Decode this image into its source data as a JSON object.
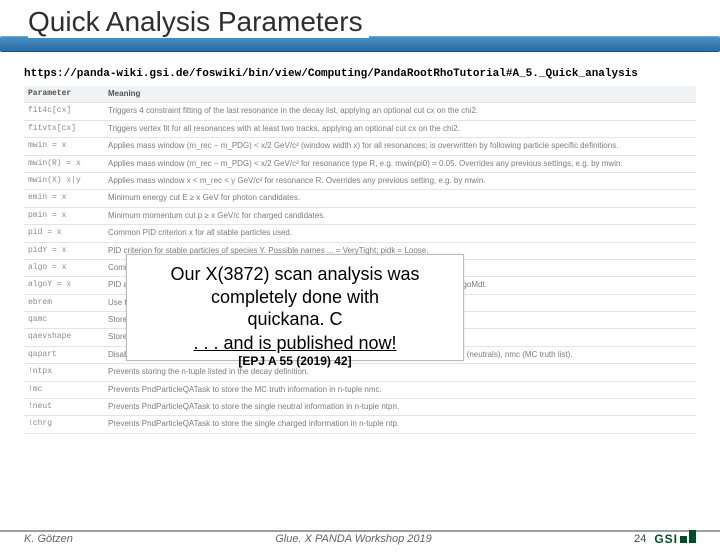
{
  "title": "Quick Analysis Parameters",
  "url": "https://panda-wiki.gsi.de/foswiki/bin/view/Computing/PandaRootRhoTutorial#A_5._Quick_analysis",
  "table": {
    "header": {
      "param": "Parameter",
      "meaning": "Meaning"
    },
    "rows": [
      {
        "param": "fit4c[cx]",
        "meaning": "Triggers 4 constraint fitting of the last resonance in the decay list, applying an optional cut cx on the chi2."
      },
      {
        "param": "fitvtx[cx]",
        "meaning": "Triggers vertex fit for all resonances with at least two tracks, applying an optional cut cx on the chi2."
      },
      {
        "param": "mwin = x",
        "meaning": "Applies mass window (m_rec − m_PDG) < x/2 GeV/c² (window width x) for all resonances; is overwritten by following particle specific definitions."
      },
      {
        "param": "mwin(R) = x",
        "meaning": "Applies mass window (m_rec − m_PDG) < x/2 GeV/c² for resonance type R, e.g. mwin(pi0) = 0.05. Overrides any previous settings, e.g. by mwin."
      },
      {
        "param": "mwin(X)\nx|y",
        "meaning": "Applies mass window x < m_rec < y GeV/c² for resonance R. Overrides any previous setting, e.g. by mwin."
      },
      {
        "param": "emin = x",
        "meaning": "Minimum energy cut E ≥ x GeV for photon candidates."
      },
      {
        "param": "pmin = x",
        "meaning": "Minimum momentum cut p ≥ x GeV/c for charged candidates."
      },
      {
        "param": "pid = x",
        "meaning": "Common PID criterion x for all stable particles used."
      },
      {
        "param": "pidY = x",
        "meaning": "PID criterion for stable particles of species Y. Possible names ... = VeryTight; pidk = Loose."
      },
      {
        "param": "algo = x",
        "meaning": "Common PID algorithm for all stable particles."
      },
      {
        "param": "algoY = x",
        "meaning": "PID algorithm(s) x for stable particles of species Y with Y being e, mu, pi, k or p. E.g. algomu = PidAlgoMdt."
      },
      {
        "param": "ebrem",
        "meaning": "Use the electron lists with bremsstrahlung correction (i.e. one-shower)."
      },
      {
        "param": "qamc",
        "meaning": "Stores the MC truth list in the n-tuple nmc."
      },
      {
        "param": "qaevshape",
        "meaning": "Stores event shape variables in each n-tuple."
      },
      {
        "param": "qapart",
        "meaning": "Disables PndParticleQATask, a simple single particle studies. Generates n-tuples ntp (charged), ntpn (neutrals), nmc (MC truth list)."
      },
      {
        "param": "!ntpx",
        "meaning": "Prevents storing the n-tuple listed in the decay definition."
      },
      {
        "param": "!mc",
        "meaning": "Prevents PndParticleQATask to store the MC truth information in n-tuple nmc."
      },
      {
        "param": "!neut",
        "meaning": "Prevents PndParticleQATask to store the single neutral information in n-tuple ntpn."
      },
      {
        "param": "!chrg",
        "meaning": "Prevents PndParticleQATask to store the single charged information in n-tuple ntp."
      }
    ]
  },
  "callout": {
    "line1": "Our X(3872) scan analysis was",
    "line2": "completely   done with",
    "line3": "quickana. C",
    "line4": ". . . and is published now!"
  },
  "reference": "[EPJ A 55 (2019) 42]",
  "footer": {
    "author": "K. Götzen",
    "conference": "Glue. X PANDA Workshop 2019",
    "page": "24",
    "logo": "GSI"
  }
}
